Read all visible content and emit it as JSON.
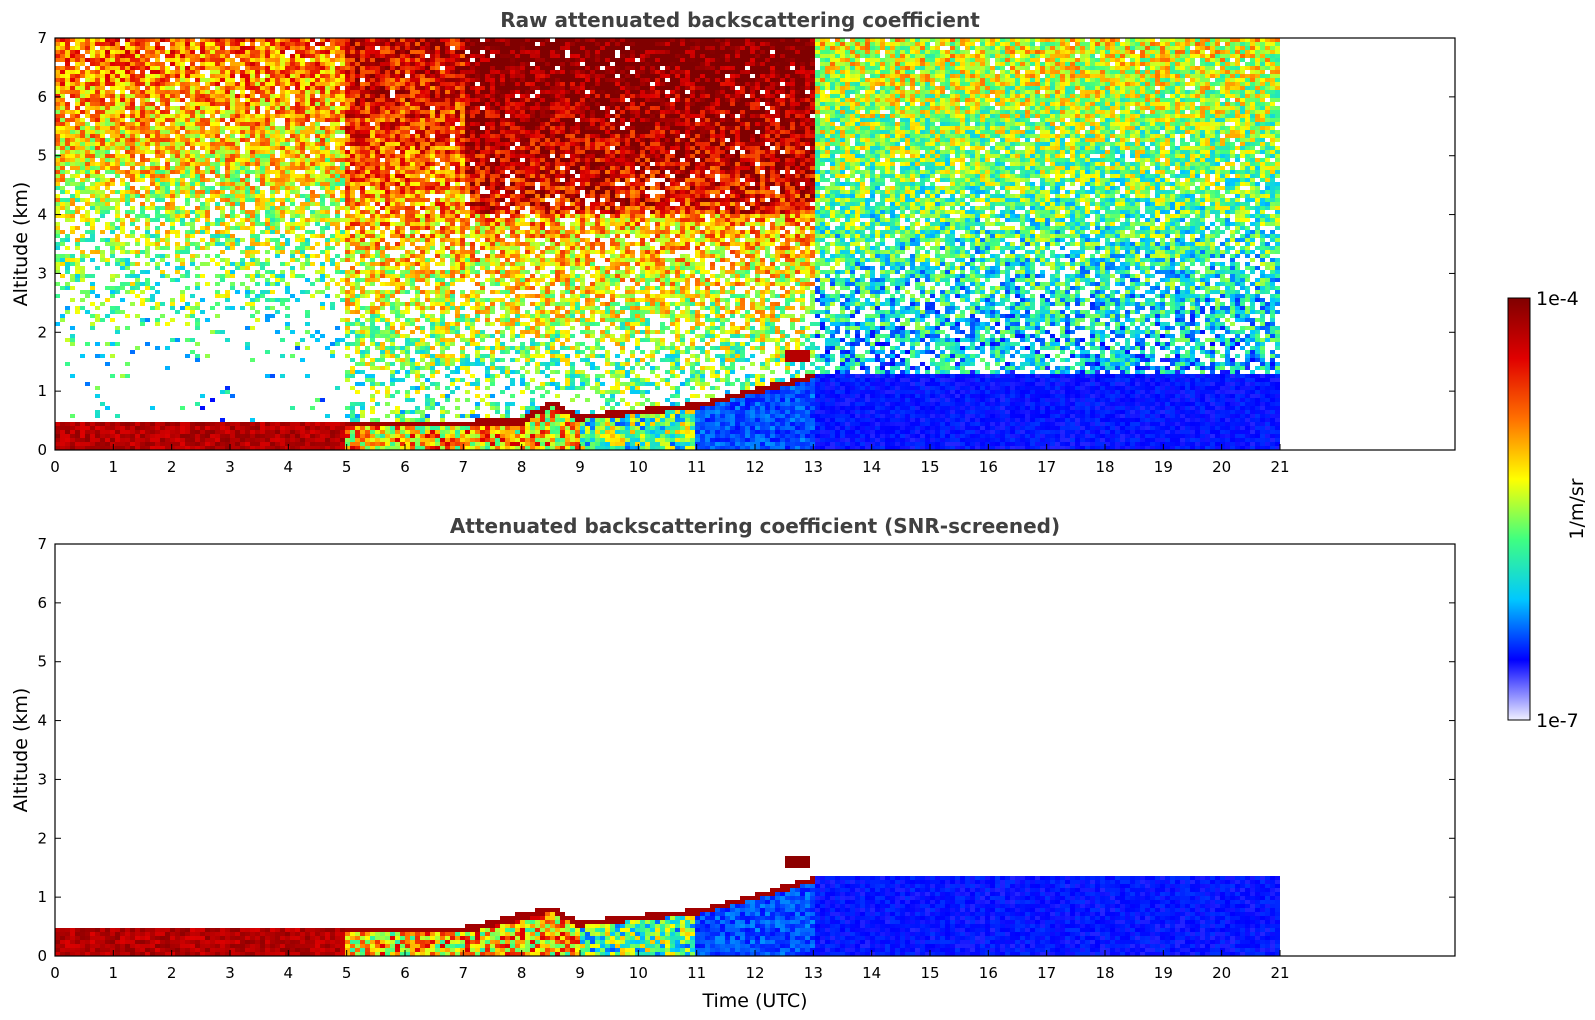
{
  "chart_data": [
    {
      "type": "heatmap",
      "title": "Raw attenuated backscattering coefficient",
      "xlabel": "",
      "ylabel": "Altitude (km)",
      "xlim": [
        0,
        24
      ],
      "ylim": [
        0,
        7
      ],
      "x_ticks": [
        "0",
        "1",
        "2",
        "3",
        "4",
        "5",
        "6",
        "7",
        "8",
        "9",
        "10",
        "11",
        "12",
        "13",
        "14",
        "15",
        "16",
        "17",
        "18",
        "19",
        "20",
        "21"
      ],
      "y_ticks": [
        "0",
        "1",
        "2",
        "3",
        "4",
        "5",
        "6",
        "7"
      ],
      "data_extent_x": [
        0,
        21
      ],
      "boundary_layer_top_km": [
        {
          "t": 0,
          "h": 0.5
        },
        {
          "t": 4.5,
          "h": 0.5
        },
        {
          "t": 5,
          "h": 0.5
        },
        {
          "t": 6,
          "h": 0.5
        },
        {
          "t": 7,
          "h": 0.5
        },
        {
          "t": 8,
          "h": 0.55
        },
        {
          "t": 8.5,
          "h": 0.85
        },
        {
          "t": 9,
          "h": 0.6
        },
        {
          "t": 10,
          "h": 0.7
        },
        {
          "t": 11,
          "h": 0.8
        },
        {
          "t": 12,
          "h": 1.05
        },
        {
          "t": 13,
          "h": 1.3
        }
      ],
      "cloud_layer": {
        "t_start": 12.5,
        "t_end": 12.9,
        "h": 1.6
      }
    },
    {
      "type": "heatmap",
      "title": "Attenuated backscattering coefficient (SNR-screened)",
      "xlabel": "Time (UTC)",
      "ylabel": "Altitude (km)",
      "xlim": [
        0,
        24
      ],
      "ylim": [
        0,
        7
      ],
      "x_ticks": [
        "0",
        "1",
        "2",
        "3",
        "4",
        "5",
        "6",
        "7",
        "8",
        "9",
        "10",
        "11",
        "12",
        "13",
        "14",
        "15",
        "16",
        "17",
        "18",
        "19",
        "20",
        "21"
      ],
      "y_ticks": [
        "0",
        "1",
        "2",
        "3",
        "4",
        "5",
        "6",
        "7"
      ],
      "data_extent_x": [
        0,
        21
      ],
      "boundary_layer_top_km": [
        {
          "t": 0,
          "h": 0.5
        },
        {
          "t": 5,
          "h": 0.5
        },
        {
          "t": 7,
          "h": 0.5
        },
        {
          "t": 8.5,
          "h": 0.85
        },
        {
          "t": 9,
          "h": 0.6
        },
        {
          "t": 11,
          "h": 0.8
        },
        {
          "t": 12,
          "h": 1.05
        },
        {
          "t": 13,
          "h": 1.35
        }
      ],
      "cloud_layer": {
        "t_start": 12.5,
        "t_end": 12.9,
        "h": 1.6
      }
    }
  ],
  "colorbar": {
    "label": "1/m/sr",
    "max_label": "1e-4",
    "min_label": "1e-7",
    "colormap": [
      "#f0f0ff",
      "#0000ff",
      "#00c8ff",
      "#40ff80",
      "#ffff00",
      "#ff7000",
      "#e00000",
      "#800000"
    ]
  }
}
